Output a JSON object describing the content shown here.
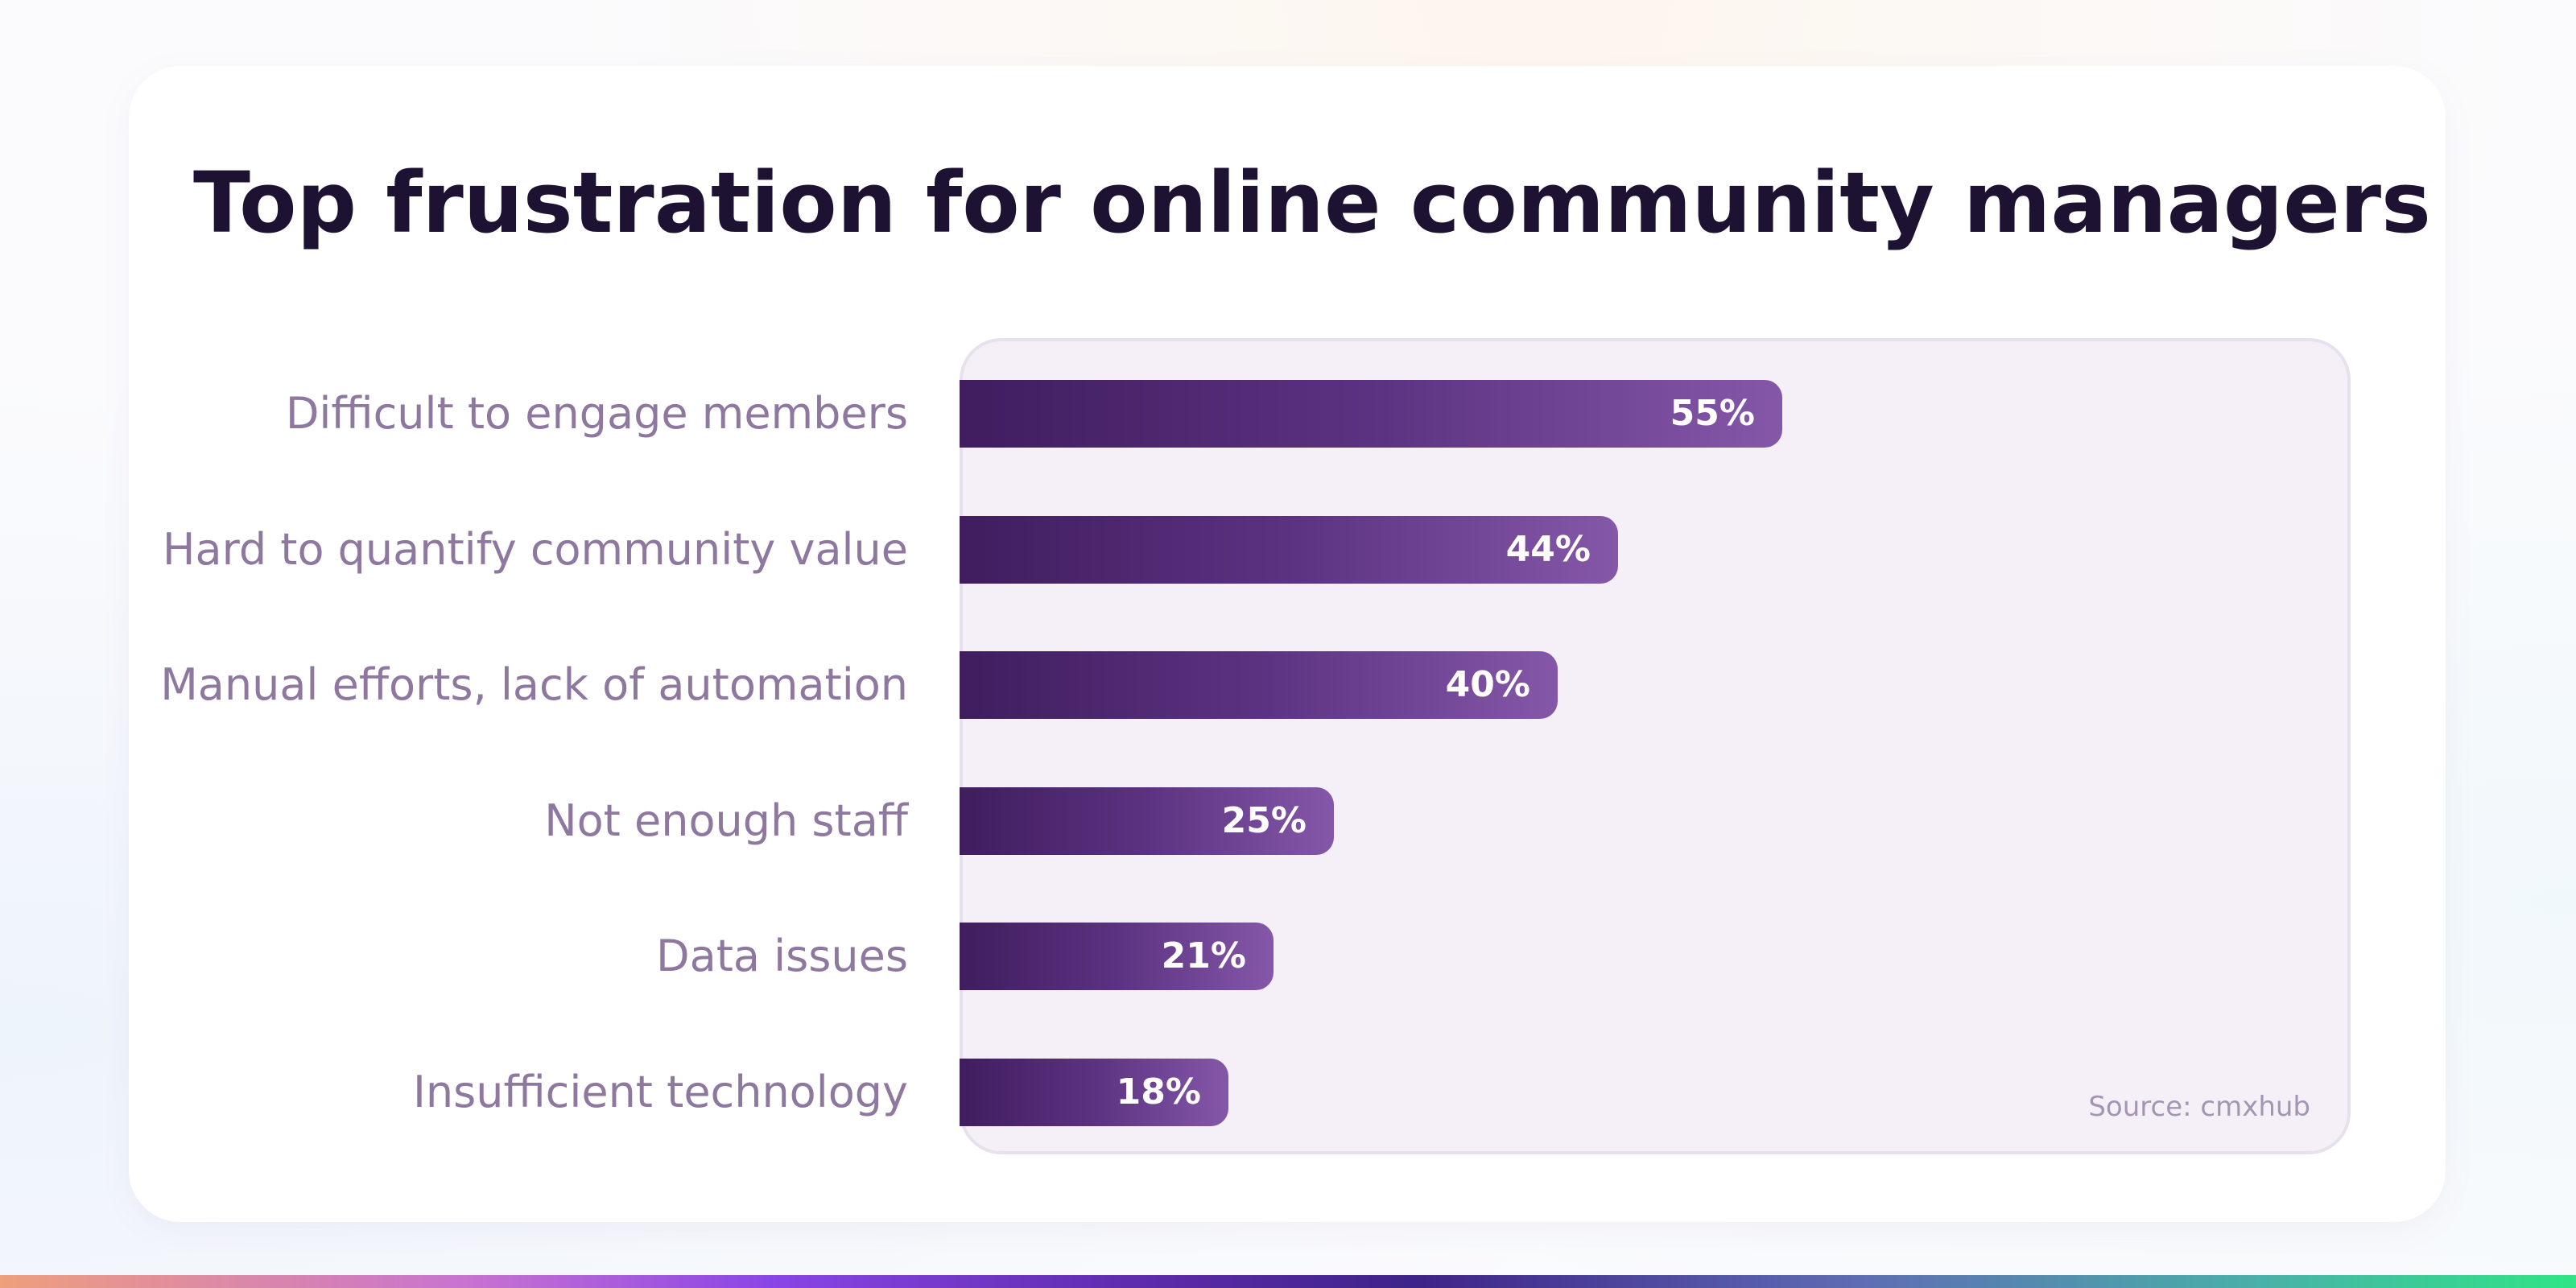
{
  "chart_data": {
    "type": "bar",
    "orientation": "horizontal",
    "title": "Top frustration for online community managers",
    "categories": [
      "Difficult to engage members",
      "Hard to quantify community value",
      "Manual efforts, lack of automation",
      "Not enough staff",
      "Data issues",
      "Insufficient technology"
    ],
    "values": [
      55,
      44,
      40,
      25,
      21,
      18
    ],
    "value_labels": [
      "55%",
      "44%",
      "40%",
      "25%",
      "21%",
      "18%"
    ],
    "xlim": [
      0,
      93
    ],
    "source": "Source: cmxhub",
    "colors": {
      "bar_start": "#3f1d5e",
      "bar_end": "#8557a8",
      "label": "#8e789f",
      "title": "#1e1233",
      "plot_background": "#f5f0f7"
    },
    "grid": false,
    "legend": "none"
  }
}
